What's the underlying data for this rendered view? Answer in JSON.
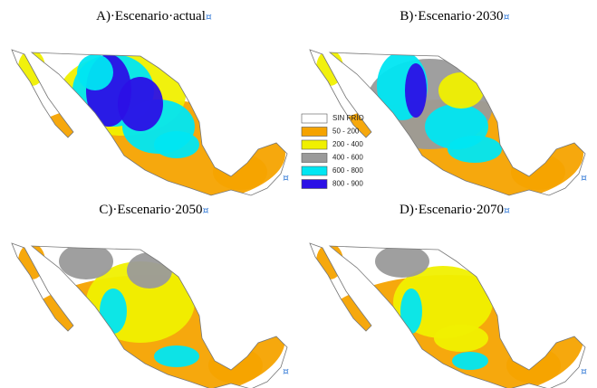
{
  "panels": [
    {
      "title": "A)·Escenario·actual",
      "mark": "¤",
      "corner": "¤"
    },
    {
      "title": "B)·Escenario·2030",
      "mark": "¤",
      "corner": "¤"
    },
    {
      "title": "C)·Escenario·2050",
      "mark": "¤",
      "corner": "¤"
    },
    {
      "title": "D)·Escenario·2070",
      "mark": "¤",
      "corner": "¤"
    }
  ],
  "legend": [
    {
      "label": "SIN FRÍO",
      "color": "#ffffff"
    },
    {
      "label": "50 - 200",
      "color": "#f5a300"
    },
    {
      "label": "200 - 400",
      "color": "#f0f000"
    },
    {
      "label": "400 - 600",
      "color": "#9a9a9a"
    },
    {
      "label": "600 - 800",
      "color": "#00e6f2"
    },
    {
      "label": "800 - 900",
      "color": "#2b10e6"
    }
  ]
}
